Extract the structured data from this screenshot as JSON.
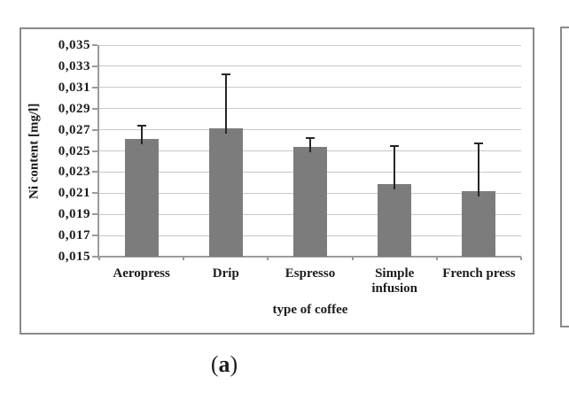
{
  "figure": {
    "caption": {
      "open": "(",
      "letter": "a",
      "close": ")"
    }
  },
  "chart_data": {
    "type": "bar",
    "title": "",
    "xlabel": "type of coffee",
    "ylabel": "Ni content [mg/l]",
    "categories": [
      "Aeropress",
      "Drip",
      "Espresso",
      "Simple infusion",
      "French press"
    ],
    "values": [
      0.0261,
      0.0271,
      0.0254,
      0.0219,
      0.0212
    ],
    "errors_plus": [
      0.0013,
      0.0051,
      0.0008,
      0.0036,
      0.0045
    ],
    "ylim": [
      0.015,
      0.035
    ],
    "ytick_step": 0.002,
    "ytick_labels": [
      "0,015",
      "0,017",
      "0,019",
      "0,021",
      "0,023",
      "0,025",
      "0,027",
      "0,029",
      "0,031",
      "0,033",
      "0,035"
    ],
    "decimal_separator": ",",
    "grid": true,
    "legend": false,
    "error_bars": "plus",
    "colors": {
      "bar": "#7c7c7c",
      "gridline": "#c8c8c8",
      "axis": "#9b9b9b",
      "panel_border": "#8a8a8a",
      "error_bar": "#262626",
      "text": "#1c1c1c"
    }
  }
}
